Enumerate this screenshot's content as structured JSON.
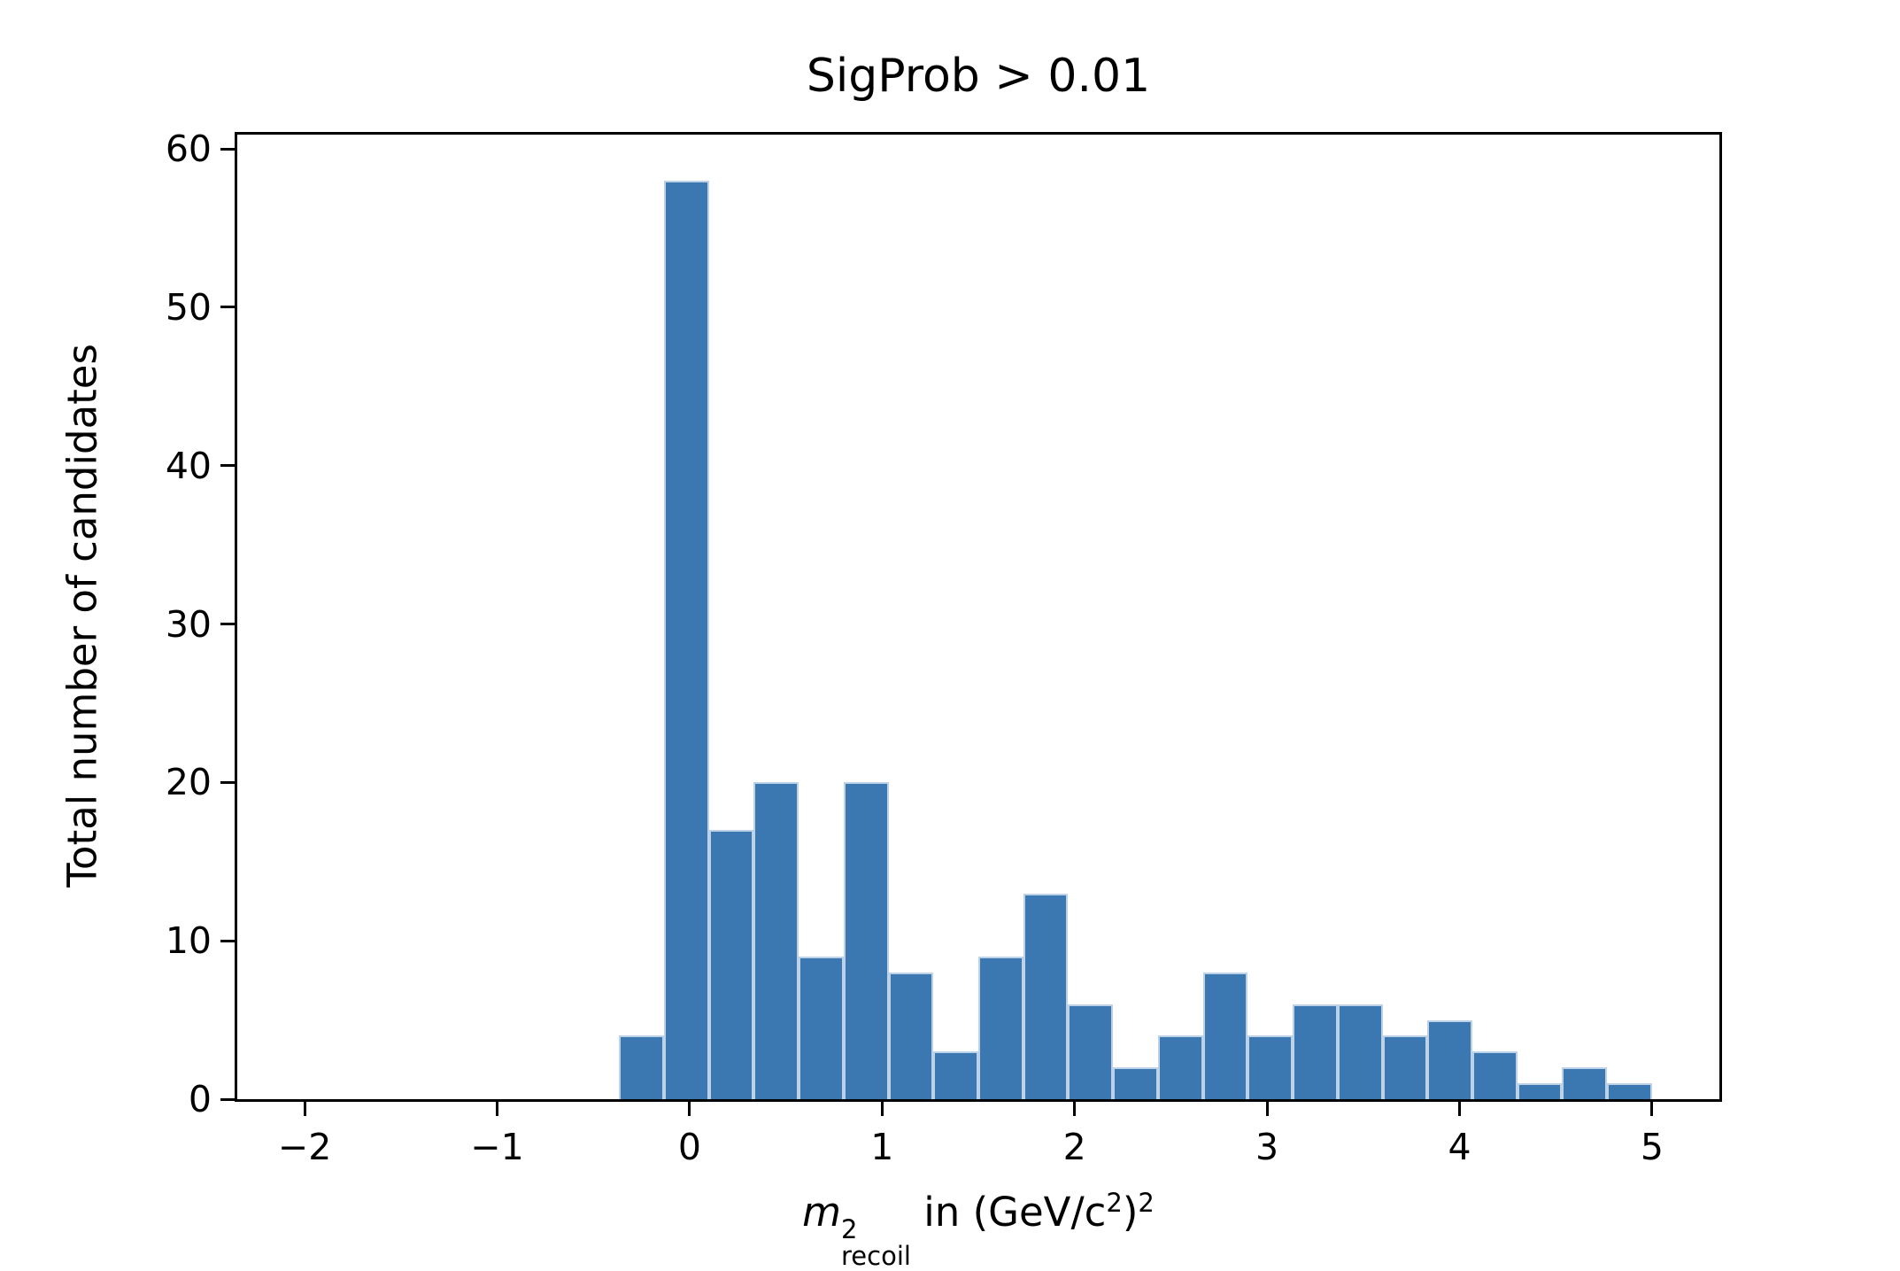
{
  "figure": {
    "background_color": "#ffffff",
    "spine_color": "#000000",
    "text_color": "#000000"
  },
  "chart_data": {
    "type": "bar",
    "subtype": "histogram",
    "title": "SigProb > 0.01",
    "ylabel": "Total number of candidates",
    "xlabel_plain": "m²_recoil in (GeV/c²)²",
    "xlabel_parts": {
      "var": "m",
      "sup": "2",
      "sub": "recoil",
      "mid": " in (GeV/c",
      "c_sup": "2",
      "close": ")",
      "outer_sup": "2"
    },
    "bin_start": -2.0,
    "bin_width": 0.23333333,
    "counts": [
      0,
      0,
      0,
      0,
      0,
      0,
      0,
      4,
      58,
      17,
      20,
      9,
      20,
      8,
      3,
      9,
      13,
      6,
      2,
      4,
      8,
      4,
      6,
      6,
      4,
      5,
      3,
      1,
      2,
      1
    ],
    "total_entries": 213,
    "xlim": [
      -2.35,
      5.35
    ],
    "ylim": [
      0,
      60.9
    ],
    "xticks": [
      -2,
      -1,
      0,
      1,
      2,
      3,
      4,
      5
    ],
    "xtick_labels": [
      "−2",
      "−1",
      "0",
      "1",
      "2",
      "3",
      "4",
      "5"
    ],
    "yticks": [
      0,
      10,
      20,
      30,
      40,
      50,
      60
    ],
    "ytick_labels": [
      "0",
      "10",
      "20",
      "30",
      "40",
      "50",
      "60"
    ],
    "grid": false,
    "legend": null,
    "bar_color": "#3b77b0",
    "bar_edge_color": "#bdd1e7"
  }
}
